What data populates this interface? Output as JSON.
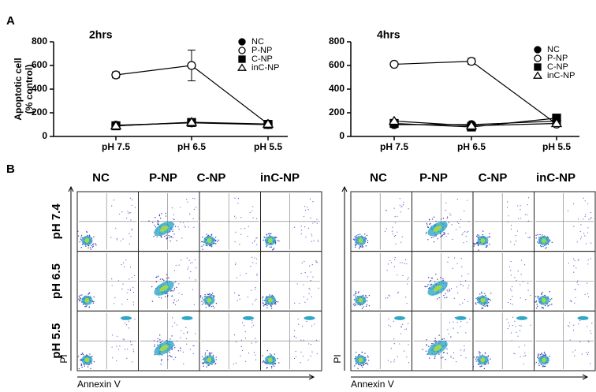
{
  "panel_labels": [
    "A",
    "B"
  ],
  "chart_data": [
    {
      "type": "line",
      "title": "2hrs",
      "ylabel": [
        "Apoptotic cell",
        "(% control)"
      ],
      "categories": [
        "pH 7.5",
        "pH 6.5",
        "pH 5.5"
      ],
      "ylim": [
        0,
        800
      ],
      "yticks": [
        0,
        200,
        400,
        600,
        800
      ],
      "series": [
        {
          "name": "NC",
          "color": "#000000",
          "marker": "circle",
          "filled": true,
          "values": [
            95,
            115,
            100
          ]
        },
        {
          "name": "P-NP",
          "color": "#000000",
          "marker": "circle",
          "filled": false,
          "values": [
            520,
            600,
            105
          ],
          "errors": [
            25,
            130,
            10
          ]
        },
        {
          "name": "C-NP",
          "color": "#000000",
          "marker": "square",
          "filled": true,
          "values": [
            90,
            118,
            102
          ]
        },
        {
          "name": "inC-NP",
          "color": "#000000",
          "marker": "triangle",
          "filled": false,
          "values": [
            90,
            120,
            105
          ]
        }
      ]
    },
    {
      "type": "line",
      "title": "4hrs",
      "categories": [
        "pH 7.5",
        "pH 6.5",
        "pH 5.5"
      ],
      "ylim": [
        0,
        800
      ],
      "yticks": [
        0,
        200,
        400,
        600,
        800
      ],
      "series": [
        {
          "name": "NC",
          "color": "#000000",
          "marker": "circle",
          "filled": true,
          "values": [
            100,
            100,
            130
          ]
        },
        {
          "name": "P-NP",
          "color": "#000000",
          "marker": "circle",
          "filled": false,
          "values": [
            610,
            635,
            105
          ],
          "errors": [
            10,
            25,
            10
          ]
        },
        {
          "name": "C-NP",
          "color": "#000000",
          "marker": "square",
          "filled": true,
          "values": [
            110,
            80,
            155
          ]
        },
        {
          "name": "inC-NP",
          "color": "#000000",
          "marker": "triangle",
          "filled": false,
          "values": [
            130,
            90,
            110
          ]
        }
      ]
    }
  ],
  "flow_cytometry": [
    {
      "columns": [
        "NC",
        "P-NP",
        "C-NP",
        "inC-NP"
      ],
      "rows": [
        "pH 7.4",
        "pH 6.5",
        "pH 5.5"
      ],
      "x_label": "Annexin V",
      "y_label": "PI"
    },
    {
      "columns": [
        "NC",
        "P-NP",
        "C-NP",
        "inC-NP"
      ],
      "x_label": "Annexin V",
      "y_label": "PI"
    }
  ]
}
